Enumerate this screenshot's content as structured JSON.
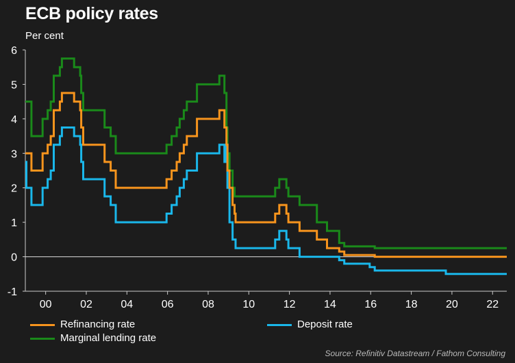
{
  "header": {
    "title": "ECB policy rates",
    "subtitle": "Per cent"
  },
  "source": "Source: Refinitiv Datastream / Fathom Consulting",
  "colors": {
    "background": "#1c1c1c",
    "refinancing": "#f7941d",
    "deposit": "#1ab7ea",
    "marginal": "#1a8a1a",
    "axis": "#cccccc"
  },
  "legend": {
    "refinancing": "Refinancing rate",
    "deposit": "Deposit rate",
    "marginal": "Marginal lending rate"
  },
  "chart_data": {
    "type": "line",
    "step": true,
    "title": "ECB policy rates",
    "ylabel": "Per cent",
    "xlabel": "",
    "xlim": [
      1999.0,
      2022.7
    ],
    "ylim": [
      -1,
      6
    ],
    "yticks": [
      -1,
      0,
      1,
      2,
      3,
      4,
      5,
      6
    ],
    "xticks": [
      {
        "value": 2000,
        "label": "00"
      },
      {
        "value": 2002,
        "label": "02"
      },
      {
        "value": 2004,
        "label": "04"
      },
      {
        "value": 2006,
        "label": "06"
      },
      {
        "value": 2008,
        "label": "08"
      },
      {
        "value": 2010,
        "label": "10"
      },
      {
        "value": 2012,
        "label": "12"
      },
      {
        "value": 2014,
        "label": "14"
      },
      {
        "value": 2016,
        "label": "16"
      },
      {
        "value": 2018,
        "label": "18"
      },
      {
        "value": 2020,
        "label": "20"
      },
      {
        "value": 2022,
        "label": "22"
      }
    ],
    "zero_line": true,
    "grid": false,
    "legend_position": "bottom",
    "series": [
      {
        "name": "Refinancing rate",
        "color": "#f7941d",
        "points": [
          [
            1999.0,
            3.0
          ],
          [
            1999.3,
            2.5
          ],
          [
            1999.85,
            3.0
          ],
          [
            2000.1,
            3.25
          ],
          [
            2000.25,
            3.5
          ],
          [
            2000.4,
            4.25
          ],
          [
            2000.7,
            4.5
          ],
          [
            2000.8,
            4.75
          ],
          [
            2001.4,
            4.5
          ],
          [
            2001.7,
            4.25
          ],
          [
            2001.75,
            3.75
          ],
          [
            2001.85,
            3.25
          ],
          [
            2002.9,
            2.75
          ],
          [
            2003.2,
            2.5
          ],
          [
            2003.45,
            2.0
          ],
          [
            2005.95,
            2.25
          ],
          [
            2006.2,
            2.5
          ],
          [
            2006.45,
            2.75
          ],
          [
            2006.6,
            3.0
          ],
          [
            2006.8,
            3.25
          ],
          [
            2006.95,
            3.5
          ],
          [
            2007.45,
            4.0
          ],
          [
            2008.55,
            4.25
          ],
          [
            2008.8,
            3.75
          ],
          [
            2008.9,
            3.25
          ],
          [
            2008.95,
            2.5
          ],
          [
            2009.05,
            2.0
          ],
          [
            2009.2,
            1.5
          ],
          [
            2009.3,
            1.25
          ],
          [
            2009.35,
            1.0
          ],
          [
            2011.3,
            1.25
          ],
          [
            2011.5,
            1.5
          ],
          [
            2011.85,
            1.25
          ],
          [
            2011.95,
            1.0
          ],
          [
            2012.5,
            0.75
          ],
          [
            2013.35,
            0.5
          ],
          [
            2013.85,
            0.25
          ],
          [
            2014.45,
            0.15
          ],
          [
            2014.7,
            0.05
          ],
          [
            2016.2,
            0.0
          ],
          [
            2022.7,
            0.0
          ]
        ]
      },
      {
        "name": "Deposit rate",
        "color": "#1ab7ea",
        "points": [
          [
            1999.0,
            2.75
          ],
          [
            1999.05,
            2.0
          ],
          [
            1999.3,
            1.5
          ],
          [
            1999.85,
            2.0
          ],
          [
            2000.1,
            2.25
          ],
          [
            2000.25,
            2.5
          ],
          [
            2000.4,
            3.25
          ],
          [
            2000.7,
            3.5
          ],
          [
            2000.8,
            3.75
          ],
          [
            2001.4,
            3.5
          ],
          [
            2001.7,
            3.25
          ],
          [
            2001.75,
            2.75
          ],
          [
            2001.85,
            2.25
          ],
          [
            2002.9,
            1.75
          ],
          [
            2003.2,
            1.5
          ],
          [
            2003.45,
            1.0
          ],
          [
            2005.95,
            1.25
          ],
          [
            2006.2,
            1.5
          ],
          [
            2006.45,
            1.75
          ],
          [
            2006.6,
            2.0
          ],
          [
            2006.8,
            2.25
          ],
          [
            2006.95,
            2.5
          ],
          [
            2007.45,
            3.0
          ],
          [
            2008.55,
            3.25
          ],
          [
            2008.8,
            2.75
          ],
          [
            2008.9,
            3.25
          ],
          [
            2008.95,
            2.0
          ],
          [
            2009.05,
            1.0
          ],
          [
            2009.2,
            0.5
          ],
          [
            2009.35,
            0.25
          ],
          [
            2011.3,
            0.5
          ],
          [
            2011.5,
            0.75
          ],
          [
            2011.85,
            0.5
          ],
          [
            2011.95,
            0.25
          ],
          [
            2012.5,
            0.0
          ],
          [
            2014.45,
            -0.1
          ],
          [
            2014.7,
            -0.2
          ],
          [
            2015.95,
            -0.3
          ],
          [
            2016.2,
            -0.4
          ],
          [
            2019.7,
            -0.5
          ],
          [
            2022.7,
            -0.5
          ]
        ]
      },
      {
        "name": "Marginal lending rate",
        "color": "#1a8a1a",
        "points": [
          [
            1999.0,
            4.5
          ],
          [
            1999.3,
            3.5
          ],
          [
            1999.85,
            4.0
          ],
          [
            2000.1,
            4.25
          ],
          [
            2000.25,
            4.5
          ],
          [
            2000.4,
            5.25
          ],
          [
            2000.7,
            5.5
          ],
          [
            2000.8,
            5.75
          ],
          [
            2001.4,
            5.5
          ],
          [
            2001.7,
            5.25
          ],
          [
            2001.75,
            4.75
          ],
          [
            2001.85,
            4.25
          ],
          [
            2002.9,
            3.75
          ],
          [
            2003.2,
            3.5
          ],
          [
            2003.45,
            3.0
          ],
          [
            2005.95,
            3.25
          ],
          [
            2006.2,
            3.5
          ],
          [
            2006.45,
            3.75
          ],
          [
            2006.6,
            4.0
          ],
          [
            2006.8,
            4.25
          ],
          [
            2006.95,
            4.5
          ],
          [
            2007.45,
            5.0
          ],
          [
            2008.55,
            5.25
          ],
          [
            2008.8,
            4.75
          ],
          [
            2008.9,
            3.75
          ],
          [
            2008.95,
            3.0
          ],
          [
            2009.05,
            2.5
          ],
          [
            2009.2,
            2.0
          ],
          [
            2009.3,
            1.75
          ],
          [
            2011.3,
            2.0
          ],
          [
            2011.5,
            2.25
          ],
          [
            2011.85,
            2.0
          ],
          [
            2011.95,
            1.75
          ],
          [
            2012.5,
            1.5
          ],
          [
            2013.35,
            1.0
          ],
          [
            2013.85,
            0.75
          ],
          [
            2014.45,
            0.4
          ],
          [
            2014.7,
            0.3
          ],
          [
            2016.2,
            0.25
          ],
          [
            2022.7,
            0.25
          ]
        ]
      }
    ]
  }
}
